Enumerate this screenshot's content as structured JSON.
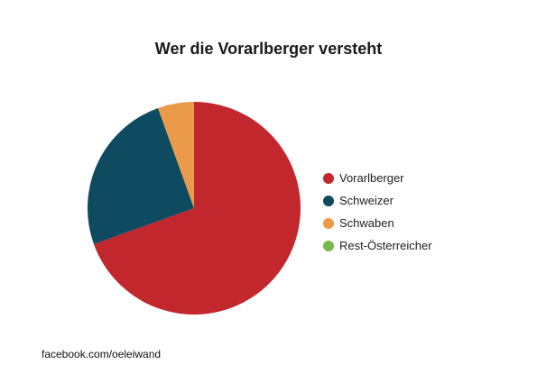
{
  "chart_data": {
    "type": "pie",
    "title": "Wer die Vorarlberger versteht",
    "slices": [
      {
        "label": "Vorarlberger",
        "value": 69.5,
        "color": "#c1272d"
      },
      {
        "label": "Schweizer",
        "value": 25.0,
        "color": "#0e4a60"
      },
      {
        "label": "Schwaben",
        "value": 5.5,
        "color": "#ea9a49"
      },
      {
        "label": "Rest-Österreicher",
        "value": 0,
        "color": "#79b94a"
      }
    ],
    "legend_position": "right"
  },
  "footer": {
    "text": "facebook.com/oeleiwand"
  }
}
